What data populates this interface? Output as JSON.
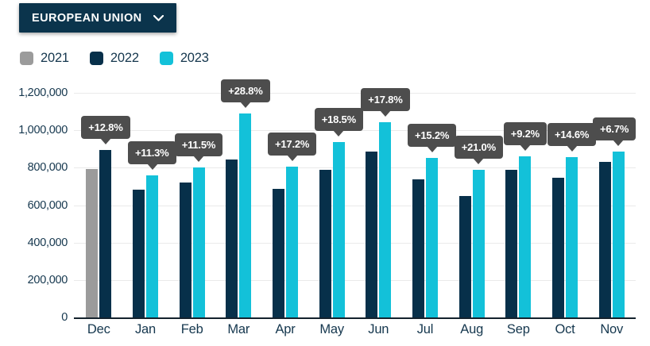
{
  "header": {
    "region_label": "EUROPEAN UNION"
  },
  "chart_data": {
    "type": "bar",
    "title": "",
    "categories": [
      "Dec",
      "Jan",
      "Feb",
      "Mar",
      "Apr",
      "May",
      "Jun",
      "Jul",
      "Aug",
      "Sep",
      "Oct",
      "Nov"
    ],
    "series": [
      {
        "name": "2021",
        "color": "#9b9b9b",
        "values": [
          795000,
          null,
          null,
          null,
          null,
          null,
          null,
          null,
          null,
          null,
          null,
          null
        ]
      },
      {
        "name": "2022",
        "color": "#07304a",
        "values": [
          896000,
          683000,
          720000,
          845000,
          686000,
          791000,
          887000,
          739000,
          651000,
          788000,
          747000,
          830000
        ]
      },
      {
        "name": "2023",
        "color": "#13c1d9",
        "values": [
          null,
          760000,
          803000,
          1088000,
          804000,
          937000,
          1045000,
          851000,
          788000,
          861000,
          856000,
          886000
        ]
      }
    ],
    "pct_labels": [
      "+12.8%",
      "+11.3%",
      "+11.5%",
      "+28.8%",
      "+17.2%",
      "+18.5%",
      "+17.8%",
      "+15.2%",
      "+21.0%",
      "+9.2%",
      "+14.6%",
      "+6.7%"
    ],
    "ylim": [
      0,
      1200000
    ],
    "y_ticks": [
      "1,200,000",
      "1,000,000",
      "800,000",
      "600,000",
      "400,000",
      "200,000",
      "0"
    ],
    "xlabel": "",
    "ylabel": "",
    "grid": true,
    "legend_position": "top-left",
    "tooltip_color": "#4d4d4d"
  }
}
